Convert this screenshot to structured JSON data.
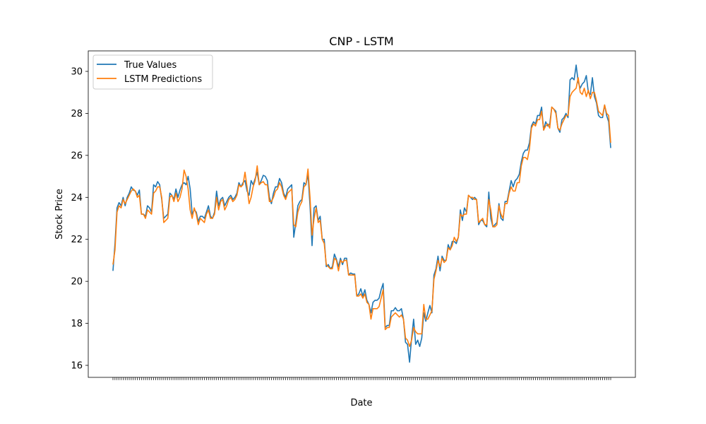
{
  "chart_data": {
    "type": "line",
    "title": "CNP - LSTM",
    "xlabel": "Date",
    "ylabel": "Stock Price",
    "ylim": [
      15.5,
      31.0
    ],
    "yticks": [
      16,
      18,
      20,
      22,
      24,
      26,
      28,
      30
    ],
    "grid": false,
    "legend_placement": "top-left",
    "series": [
      {
        "name": "True Values",
        "color": "#1f77b4",
        "values": [
          20.5,
          21.8,
          23.5,
          23.75,
          23.6,
          24.0,
          23.6,
          24.0,
          24.2,
          24.5,
          24.35,
          24.3,
          24.1,
          24.35,
          23.2,
          23.2,
          23.1,
          23.6,
          23.5,
          23.3,
          24.6,
          24.5,
          24.75,
          24.6,
          23.9,
          23.0,
          23.1,
          23.2,
          24.2,
          24.1,
          23.9,
          24.4,
          24.0,
          24.35,
          24.6,
          24.7,
          24.6,
          25.0,
          24.4,
          23.2,
          23.4,
          23.3,
          22.85,
          23.1,
          23.1,
          23.0,
          23.3,
          23.6,
          23.1,
          23.0,
          23.3,
          24.3,
          23.6,
          23.9,
          24.0,
          23.6,
          23.8,
          24.0,
          24.1,
          23.9,
          24.0,
          24.2,
          24.7,
          24.5,
          24.7,
          24.8,
          24.3,
          24.1,
          24.8,
          24.6,
          24.9,
          25.2,
          24.6,
          24.8,
          25.05,
          25.0,
          24.8,
          24.0,
          23.7,
          24.2,
          24.5,
          24.5,
          24.9,
          24.7,
          24.2,
          24.0,
          24.4,
          24.5,
          24.6,
          22.1,
          22.8,
          23.6,
          23.8,
          23.9,
          24.7,
          24.6,
          25.1,
          23.6,
          21.7,
          23.5,
          23.6,
          22.9,
          23.1,
          22.0,
          22.0,
          20.7,
          20.8,
          20.6,
          20.7,
          21.3,
          21.05,
          20.7,
          21.1,
          20.8,
          21.1,
          21.1,
          20.3,
          20.4,
          20.35,
          20.35,
          19.3,
          19.4,
          19.65,
          19.3,
          19.6,
          19.1,
          18.9,
          18.5,
          19.0,
          19.1,
          19.1,
          19.2,
          19.6,
          19.9,
          17.8,
          17.9,
          17.9,
          18.6,
          18.6,
          18.75,
          18.6,
          18.6,
          18.7,
          18.2,
          17.1,
          17.0,
          16.15,
          17.3,
          18.2,
          17.0,
          17.2,
          16.9,
          17.3,
          18.5,
          18.1,
          18.5,
          18.85,
          18.5,
          20.3,
          20.6,
          21.2,
          20.5,
          21.2,
          21.0,
          21.0,
          21.75,
          21.5,
          21.9,
          21.9,
          21.8,
          22.1,
          23.4,
          22.9,
          23.5,
          23.3,
          24.1,
          24.0,
          23.9,
          24.0,
          23.9,
          22.7,
          22.9,
          22.9,
          22.7,
          22.6,
          24.25,
          23.0,
          22.6,
          22.7,
          22.8,
          23.7,
          23.0,
          22.9,
          23.8,
          23.8,
          24.3,
          24.8,
          24.5,
          24.8,
          24.9,
          25.1,
          25.7,
          26.1,
          26.25,
          26.25,
          26.6,
          27.4,
          27.6,
          27.5,
          27.9,
          27.9,
          28.3,
          27.2,
          27.6,
          27.4,
          27.5,
          28.3,
          28.2,
          28.1,
          27.3,
          27.1,
          27.7,
          27.8,
          28.0,
          27.8,
          29.6,
          29.7,
          29.6,
          30.3,
          29.5,
          29.2,
          29.4,
          29.5,
          29.8,
          29.0,
          28.9,
          29.7,
          28.8,
          28.5,
          27.9,
          27.8,
          27.8,
          28.4,
          27.9,
          27.6,
          26.35
        ]
      },
      {
        "name": "LSTM Predictions",
        "color": "#ff7f0e",
        "values": [
          20.8,
          21.5,
          23.3,
          23.6,
          23.5,
          23.9,
          23.7,
          23.9,
          24.1,
          24.3,
          24.4,
          24.3,
          24.0,
          24.1,
          23.2,
          23.2,
          23.0,
          23.4,
          23.3,
          23.2,
          24.2,
          24.3,
          24.5,
          24.5,
          24.0,
          22.8,
          22.9,
          23.0,
          24.0,
          24.1,
          23.8,
          24.2,
          23.8,
          24.0,
          24.4,
          25.3,
          25.0,
          24.4,
          23.4,
          23.0,
          23.5,
          23.2,
          22.7,
          23.0,
          22.9,
          22.8,
          23.2,
          23.4,
          23.0,
          23.0,
          23.2,
          24.0,
          23.4,
          23.8,
          23.9,
          23.4,
          23.6,
          23.9,
          24.0,
          23.8,
          23.9,
          24.1,
          24.6,
          24.5,
          24.6,
          25.2,
          24.5,
          23.7,
          24.0,
          24.5,
          24.8,
          25.5,
          24.6,
          24.7,
          24.75,
          24.6,
          24.6,
          23.8,
          23.8,
          24.0,
          24.3,
          24.4,
          24.7,
          24.5,
          24.1,
          23.9,
          24.2,
          24.3,
          24.4,
          22.7,
          22.6,
          23.3,
          23.6,
          23.8,
          24.5,
          24.6,
          25.35,
          24.0,
          22.2,
          23.0,
          23.5,
          22.8,
          22.9,
          22.0,
          21.8,
          20.8,
          20.7,
          20.6,
          20.6,
          21.1,
          21.0,
          20.5,
          21.0,
          20.9,
          21.0,
          21.0,
          20.3,
          20.3,
          20.3,
          20.3,
          19.3,
          19.3,
          19.4,
          19.2,
          19.4,
          19.0,
          18.9,
          18.2,
          18.7,
          18.7,
          18.7,
          18.8,
          19.2,
          19.6,
          17.7,
          17.8,
          17.8,
          18.3,
          18.4,
          18.5,
          18.4,
          18.3,
          18.4,
          18.2,
          17.3,
          17.2,
          16.9,
          17.2,
          17.8,
          17.6,
          17.5,
          17.5,
          17.5,
          18.9,
          18.2,
          18.2,
          18.4,
          18.6,
          20.1,
          20.5,
          21.0,
          20.7,
          21.1,
          20.9,
          21.0,
          21.6,
          21.5,
          21.7,
          22.1,
          21.9,
          22.1,
          23.2,
          23.1,
          23.2,
          23.2,
          24.1,
          24.0,
          24.0,
          23.9,
          23.9,
          22.8,
          22.9,
          23.0,
          22.7,
          22.7,
          23.9,
          23.4,
          22.6,
          22.6,
          22.7,
          23.6,
          23.2,
          23.0,
          23.7,
          23.7,
          24.2,
          24.5,
          24.3,
          24.3,
          24.7,
          24.7,
          25.5,
          25.9,
          25.9,
          25.8,
          26.3,
          27.3,
          27.5,
          27.4,
          27.7,
          27.7,
          28.1,
          27.2,
          27.4,
          27.5,
          27.3,
          28.3,
          28.2,
          28.0,
          27.3,
          27.2,
          27.5,
          27.7,
          27.9,
          27.9,
          28.8,
          29.0,
          29.1,
          29.2,
          29.7,
          29.0,
          28.9,
          29.2,
          28.8,
          29.1,
          28.7,
          29.0,
          29.0,
          28.6,
          28.1,
          28.0,
          27.9,
          28.4,
          28.0,
          27.9,
          26.6
        ]
      }
    ]
  }
}
